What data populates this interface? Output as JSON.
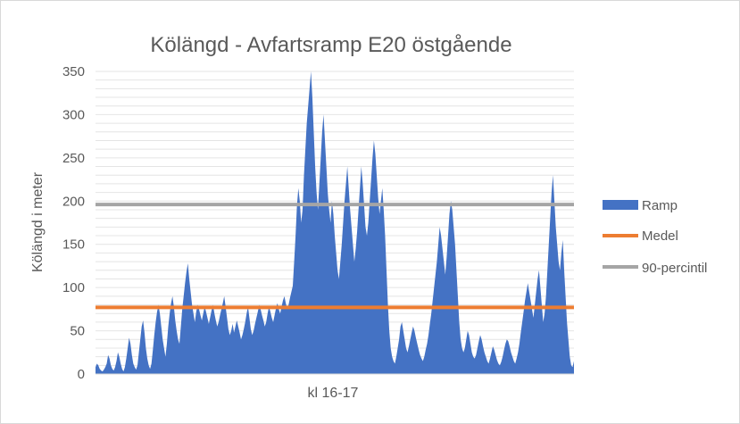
{
  "chart_data": {
    "type": "area",
    "title": "Kölängd - Avfartsramp E20 östgående",
    "xlabel": "kl 16-17",
    "ylabel": "Kölängd i meter",
    "ylim": [
      0,
      350
    ],
    "yticks": [
      0,
      50,
      100,
      150,
      200,
      250,
      300,
      350
    ],
    "grid": true,
    "legend_position": "right",
    "colors": {
      "ramp": "#4472C4",
      "medel": "#ED7D31",
      "percentile": "#A5A5A5",
      "grid": "#e4e4e4"
    },
    "series": [
      {
        "name": "Ramp",
        "kind": "area",
        "values": [
          8,
          12,
          10,
          6,
          4,
          3,
          5,
          8,
          12,
          22,
          18,
          10,
          6,
          4,
          8,
          15,
          25,
          20,
          12,
          6,
          3,
          8,
          18,
          30,
          42,
          35,
          22,
          12,
          8,
          5,
          10,
          25,
          40,
          55,
          62,
          48,
          30,
          18,
          10,
          6,
          12,
          28,
          45,
          60,
          72,
          80,
          70,
          55,
          40,
          30,
          20,
          35,
          55,
          70,
          82,
          90,
          78,
          62,
          50,
          40,
          35,
          55,
          75,
          90,
          105,
          118,
          128,
          110,
          95,
          80,
          70,
          60,
          72,
          80,
          75,
          68,
          62,
          70,
          78,
          72,
          65,
          58,
          66,
          74,
          80,
          70,
          62,
          55,
          60,
          68,
          75,
          82,
          90,
          78,
          65,
          52,
          45,
          50,
          58,
          48,
          55,
          62,
          55,
          48,
          40,
          45,
          52,
          60,
          70,
          78,
          65,
          52,
          45,
          50,
          58,
          65,
          72,
          80,
          75,
          68,
          62,
          55,
          60,
          70,
          78,
          72,
          65,
          60,
          68,
          76,
          82,
          75,
          70,
          78,
          85,
          90,
          82,
          75,
          80,
          88,
          95,
          102,
          130,
          160,
          195,
          215,
          200,
          175,
          190,
          230,
          260,
          290,
          310,
          330,
          350,
          320,
          280,
          240,
          210,
          190,
          220,
          250,
          280,
          300,
          270,
          240,
          210,
          190,
          175,
          200,
          185,
          160,
          140,
          120,
          110,
          130,
          150,
          175,
          200,
          220,
          240,
          215,
          190,
          170,
          150,
          130,
          145,
          165,
          190,
          215,
          240,
          220,
          195,
          170,
          160,
          175,
          200,
          225,
          250,
          270,
          255,
          230,
          205,
          185,
          200,
          215,
          190,
          160,
          120,
          80,
          50,
          30,
          20,
          15,
          12,
          20,
          30,
          40,
          55,
          60,
          50,
          40,
          30,
          25,
          32,
          40,
          48,
          55,
          50,
          42,
          35,
          28,
          22,
          18,
          15,
          20,
          28,
          35,
          45,
          58,
          70,
          85,
          100,
          115,
          130,
          150,
          170,
          160,
          145,
          130,
          115,
          135,
          160,
          185,
          200,
          190,
          170,
          150,
          120,
          90,
          60,
          40,
          30,
          25,
          30,
          40,
          50,
          45,
          35,
          25,
          20,
          18,
          22,
          30,
          38,
          45,
          40,
          32,
          25,
          20,
          15,
          12,
          18,
          25,
          32,
          28,
          22,
          16,
          12,
          10,
          14,
          20,
          28,
          35,
          40,
          38,
          32,
          25,
          20,
          15,
          12,
          18,
          25,
          35,
          48,
          60,
          72,
          85,
          95,
          105,
          95,
          85,
          75,
          65,
          80,
          95,
          110,
          120,
          100,
          80,
          60,
          70,
          90,
          120,
          150,
          180,
          210,
          230,
          200,
          170,
          150,
          130,
          120,
          140,
          155,
          120,
          90,
          60,
          40,
          20,
          10,
          8,
          15
        ]
      },
      {
        "name": "Medel",
        "kind": "line",
        "value": 77
      },
      {
        "name": "90-percintil",
        "kind": "line",
        "value": 196
      }
    ]
  }
}
